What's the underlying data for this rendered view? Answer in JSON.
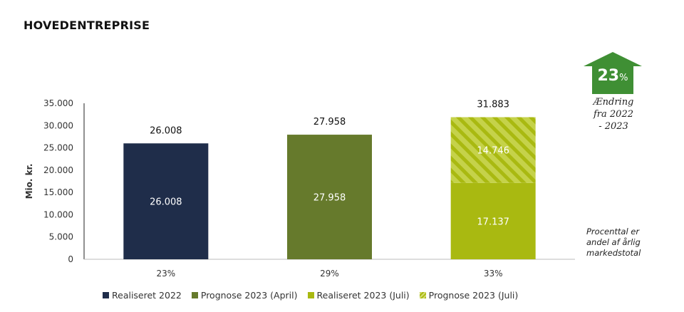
{
  "title": "HOVEDENTREPRISE",
  "badge": {
    "value": "23",
    "unit": "%",
    "caption_lines": [
      "Ændring",
      "fra 2022",
      "- 2023"
    ],
    "color": "#3f8f34"
  },
  "note_lines": [
    "Procenttal er",
    "andel af årlig",
    "markedstotal"
  ],
  "legend": [
    {
      "label": "Realiseret 2022",
      "color": "#1f2d4a",
      "pattern": false
    },
    {
      "label": "Prognose 2023 (April)",
      "color": "#667a2c",
      "pattern": false
    },
    {
      "label": "Realiseret 2023 (Juli)",
      "color": "#a9b911",
      "pattern": false
    },
    {
      "label": "Prognose 2023 (Juli)",
      "color": "#a9b911",
      "pattern": true
    }
  ],
  "chart_data": {
    "type": "bar",
    "stacked": true,
    "ylabel": "Mio. kr.",
    "ylim": [
      0,
      35000
    ],
    "yticks": [
      0,
      5000,
      10000,
      15000,
      20000,
      25000,
      30000,
      35000
    ],
    "ytick_labels": [
      "0",
      "5.000",
      "10.000",
      "15.000",
      "20.000",
      "25.000",
      "30.000",
      "35.000"
    ],
    "categories": [
      "23%",
      "29%",
      "33%"
    ],
    "grid": false,
    "legend_position": "bottom",
    "bars": [
      {
        "total": 26008,
        "total_label": "26.008",
        "segments": [
          {
            "series": "Realiseret 2022",
            "value": 26008,
            "label": "26.008",
            "color": "#1f2d4a",
            "pattern": false
          }
        ]
      },
      {
        "total": 27958,
        "total_label": "27.958",
        "segments": [
          {
            "series": "Prognose 2023 (April)",
            "value": 27958,
            "label": "27.958",
            "color": "#667a2c",
            "pattern": false
          }
        ]
      },
      {
        "total": 31883,
        "total_label": "31.883",
        "segments": [
          {
            "series": "Realiseret 2023 (Juli)",
            "value": 17137,
            "label": "17.137",
            "color": "#a9b911",
            "pattern": false
          },
          {
            "series": "Prognose 2023 (Juli)",
            "value": 14746,
            "label": "14.746",
            "color": "#a9b911",
            "pattern": true
          }
        ]
      }
    ]
  }
}
